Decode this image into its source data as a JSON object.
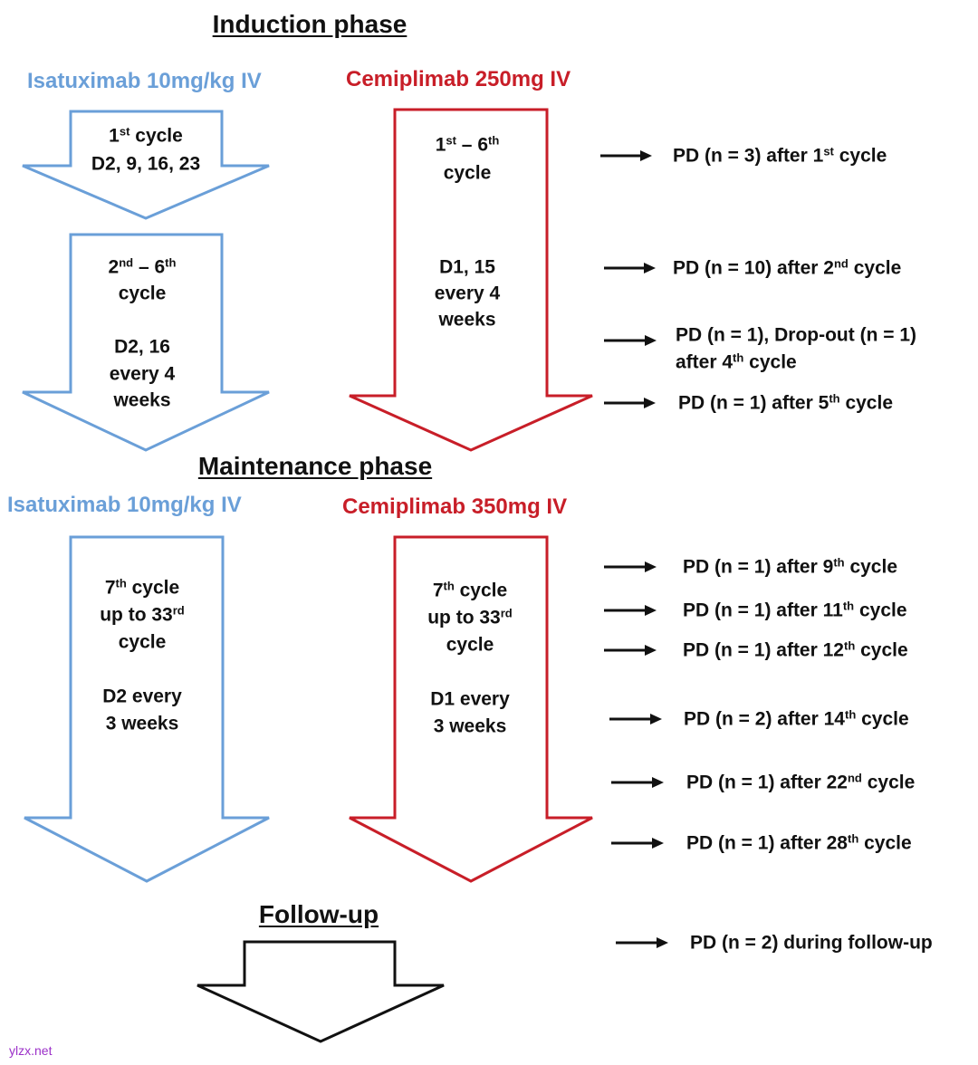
{
  "colors": {
    "isatuximab": "#6a9fd8",
    "cemiplimab": "#c81e28",
    "followup": "#111111"
  },
  "induction": {
    "title": "Induction phase",
    "isatuximab_label": "Isatuximab 10mg/kg IV",
    "cemiplimab_label": "Cemiplimab 250mg IV",
    "isatuximab_cycle1": [
      [
        {
          "text": "1"
        },
        {
          "text": "st",
          "sup": true
        },
        {
          "text": " cycle"
        }
      ],
      [
        {
          "text": "D2, 9, 16, 23"
        }
      ]
    ],
    "isatuximab_cycles2_6": [
      [
        {
          "text": "2"
        },
        {
          "text": "nd",
          "sup": true
        },
        {
          "text": " – 6"
        },
        {
          "text": "th",
          "sup": true
        }
      ],
      [
        {
          "text": "cycle"
        }
      ],
      [
        {
          "text": ""
        }
      ],
      [
        {
          "text": "D2, 16"
        }
      ],
      [
        {
          "text": "every 4"
        }
      ],
      [
        {
          "text": "weeks"
        }
      ]
    ],
    "cemiplimab_top": [
      [
        {
          "text": "1"
        },
        {
          "text": "st",
          "sup": true
        },
        {
          "text": " – 6"
        },
        {
          "text": "th",
          "sup": true
        }
      ],
      [
        {
          "text": "cycle"
        }
      ]
    ],
    "cemiplimab_bottom": [
      [
        {
          "text": "D1, 15"
        }
      ],
      [
        {
          "text": "every 4"
        }
      ],
      [
        {
          "text": "weeks"
        }
      ]
    ]
  },
  "maintenance": {
    "title": "Maintenance phase",
    "isatuximab_label": "Isatuximab 10mg/kg IV",
    "cemiplimab_label": "Cemiplimab 350mg IV",
    "isatuximab_text": [
      [
        {
          "text": "7"
        },
        {
          "text": "th",
          "sup": true
        },
        {
          "text": "  cycle"
        }
      ],
      [
        {
          "text": "up to 33"
        },
        {
          "text": "rd",
          "sup": true
        }
      ],
      [
        {
          "text": "cycle"
        }
      ],
      [
        {
          "text": ""
        }
      ],
      [
        {
          "text": "D2 every"
        }
      ],
      [
        {
          "text": "3 weeks"
        }
      ]
    ],
    "cemiplimab_text": [
      [
        {
          "text": "7"
        },
        {
          "text": "th",
          "sup": true
        },
        {
          "text": "  cycle"
        }
      ],
      [
        {
          "text": "up to 33"
        },
        {
          "text": "rd",
          "sup": true
        }
      ],
      [
        {
          "text": "cycle"
        }
      ],
      [
        {
          "text": ""
        }
      ],
      [
        {
          "text": "D1 every"
        }
      ],
      [
        {
          "text": "3 weeks"
        }
      ]
    ]
  },
  "followup": {
    "title": "Follow-up"
  },
  "outcomes": [
    [
      [
        {
          "text": "PD (n = 3) after 1"
        },
        {
          "text": "st",
          "sup": true
        },
        {
          "text": " cycle"
        }
      ]
    ],
    [
      [
        {
          "text": "PD (n = 10) after 2"
        },
        {
          "text": "nd",
          "sup": true
        },
        {
          "text": " cycle"
        }
      ]
    ],
    [
      [
        {
          "text": "PD (n = 1), Drop-out (n = 1)"
        }
      ],
      [
        {
          "text": "after 4"
        },
        {
          "text": "th",
          "sup": true
        },
        {
          "text": " cycle"
        }
      ]
    ],
    [
      [
        {
          "text": "PD (n = 1) after 5"
        },
        {
          "text": "th",
          "sup": true
        },
        {
          "text": " cycle"
        }
      ]
    ],
    [
      [
        {
          "text": "PD (n = 1) after 9"
        },
        {
          "text": "th",
          "sup": true
        },
        {
          "text": " cycle"
        }
      ]
    ],
    [
      [
        {
          "text": "PD (n = 1) after 11"
        },
        {
          "text": "th",
          "sup": true
        },
        {
          "text": " cycle"
        }
      ]
    ],
    [
      [
        {
          "text": "PD (n = 1) after 12"
        },
        {
          "text": "th",
          "sup": true
        },
        {
          "text": " cycle"
        }
      ]
    ],
    [
      [
        {
          "text": "PD (n = 2) after 14"
        },
        {
          "text": "th",
          "sup": true
        },
        {
          "text": " cycle"
        }
      ]
    ],
    [
      [
        {
          "text": "PD (n = 1) after 22"
        },
        {
          "text": "nd",
          "sup": true
        },
        {
          "text": " cycle"
        }
      ]
    ],
    [
      [
        {
          "text": "PD (n = 1) after 28"
        },
        {
          "text": "th",
          "sup": true
        },
        {
          "text": " cycle"
        }
      ]
    ],
    [
      [
        {
          "text": "PD (n = 2) during follow-up"
        }
      ]
    ]
  ],
  "watermark": "ylzx.net"
}
